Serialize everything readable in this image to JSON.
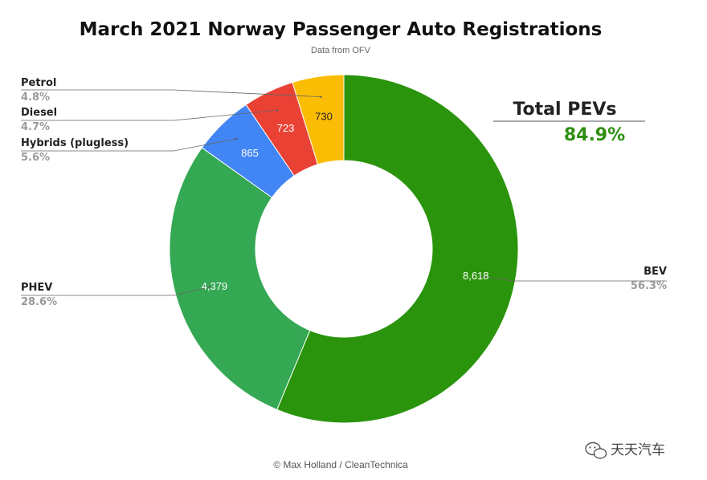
{
  "chart_data": {
    "type": "pie",
    "title": "March 2021 Norway Passenger Auto Registrations",
    "subtitle": "Data from OFV",
    "credit": "© Max Holland / CleanTechnica",
    "slices": [
      {
        "name": "BEV",
        "value": 8618,
        "value_label": "8,618",
        "percent_label": "56.3%",
        "color": "#2a940c"
      },
      {
        "name": "PHEV",
        "value": 4379,
        "value_label": "4,379",
        "percent_label": "28.6%",
        "color": "#34a853"
      },
      {
        "name": "Hybrids (plugless)",
        "value": 865,
        "value_label": "865",
        "percent_label": "5.6%",
        "color": "#4285f4"
      },
      {
        "name": "Diesel",
        "value": 723,
        "value_label": "723",
        "percent_label": "4.7%",
        "color": "#e94235"
      },
      {
        "name": "Petrol",
        "value": 730,
        "value_label": "730",
        "percent_label": "4.8%",
        "color": "#fbbc04"
      }
    ],
    "annotation": {
      "label": "Total PEVs",
      "value": "84.9%"
    }
  },
  "watermark": {
    "text": "天天汽车",
    "icon": "wechat-icon"
  }
}
